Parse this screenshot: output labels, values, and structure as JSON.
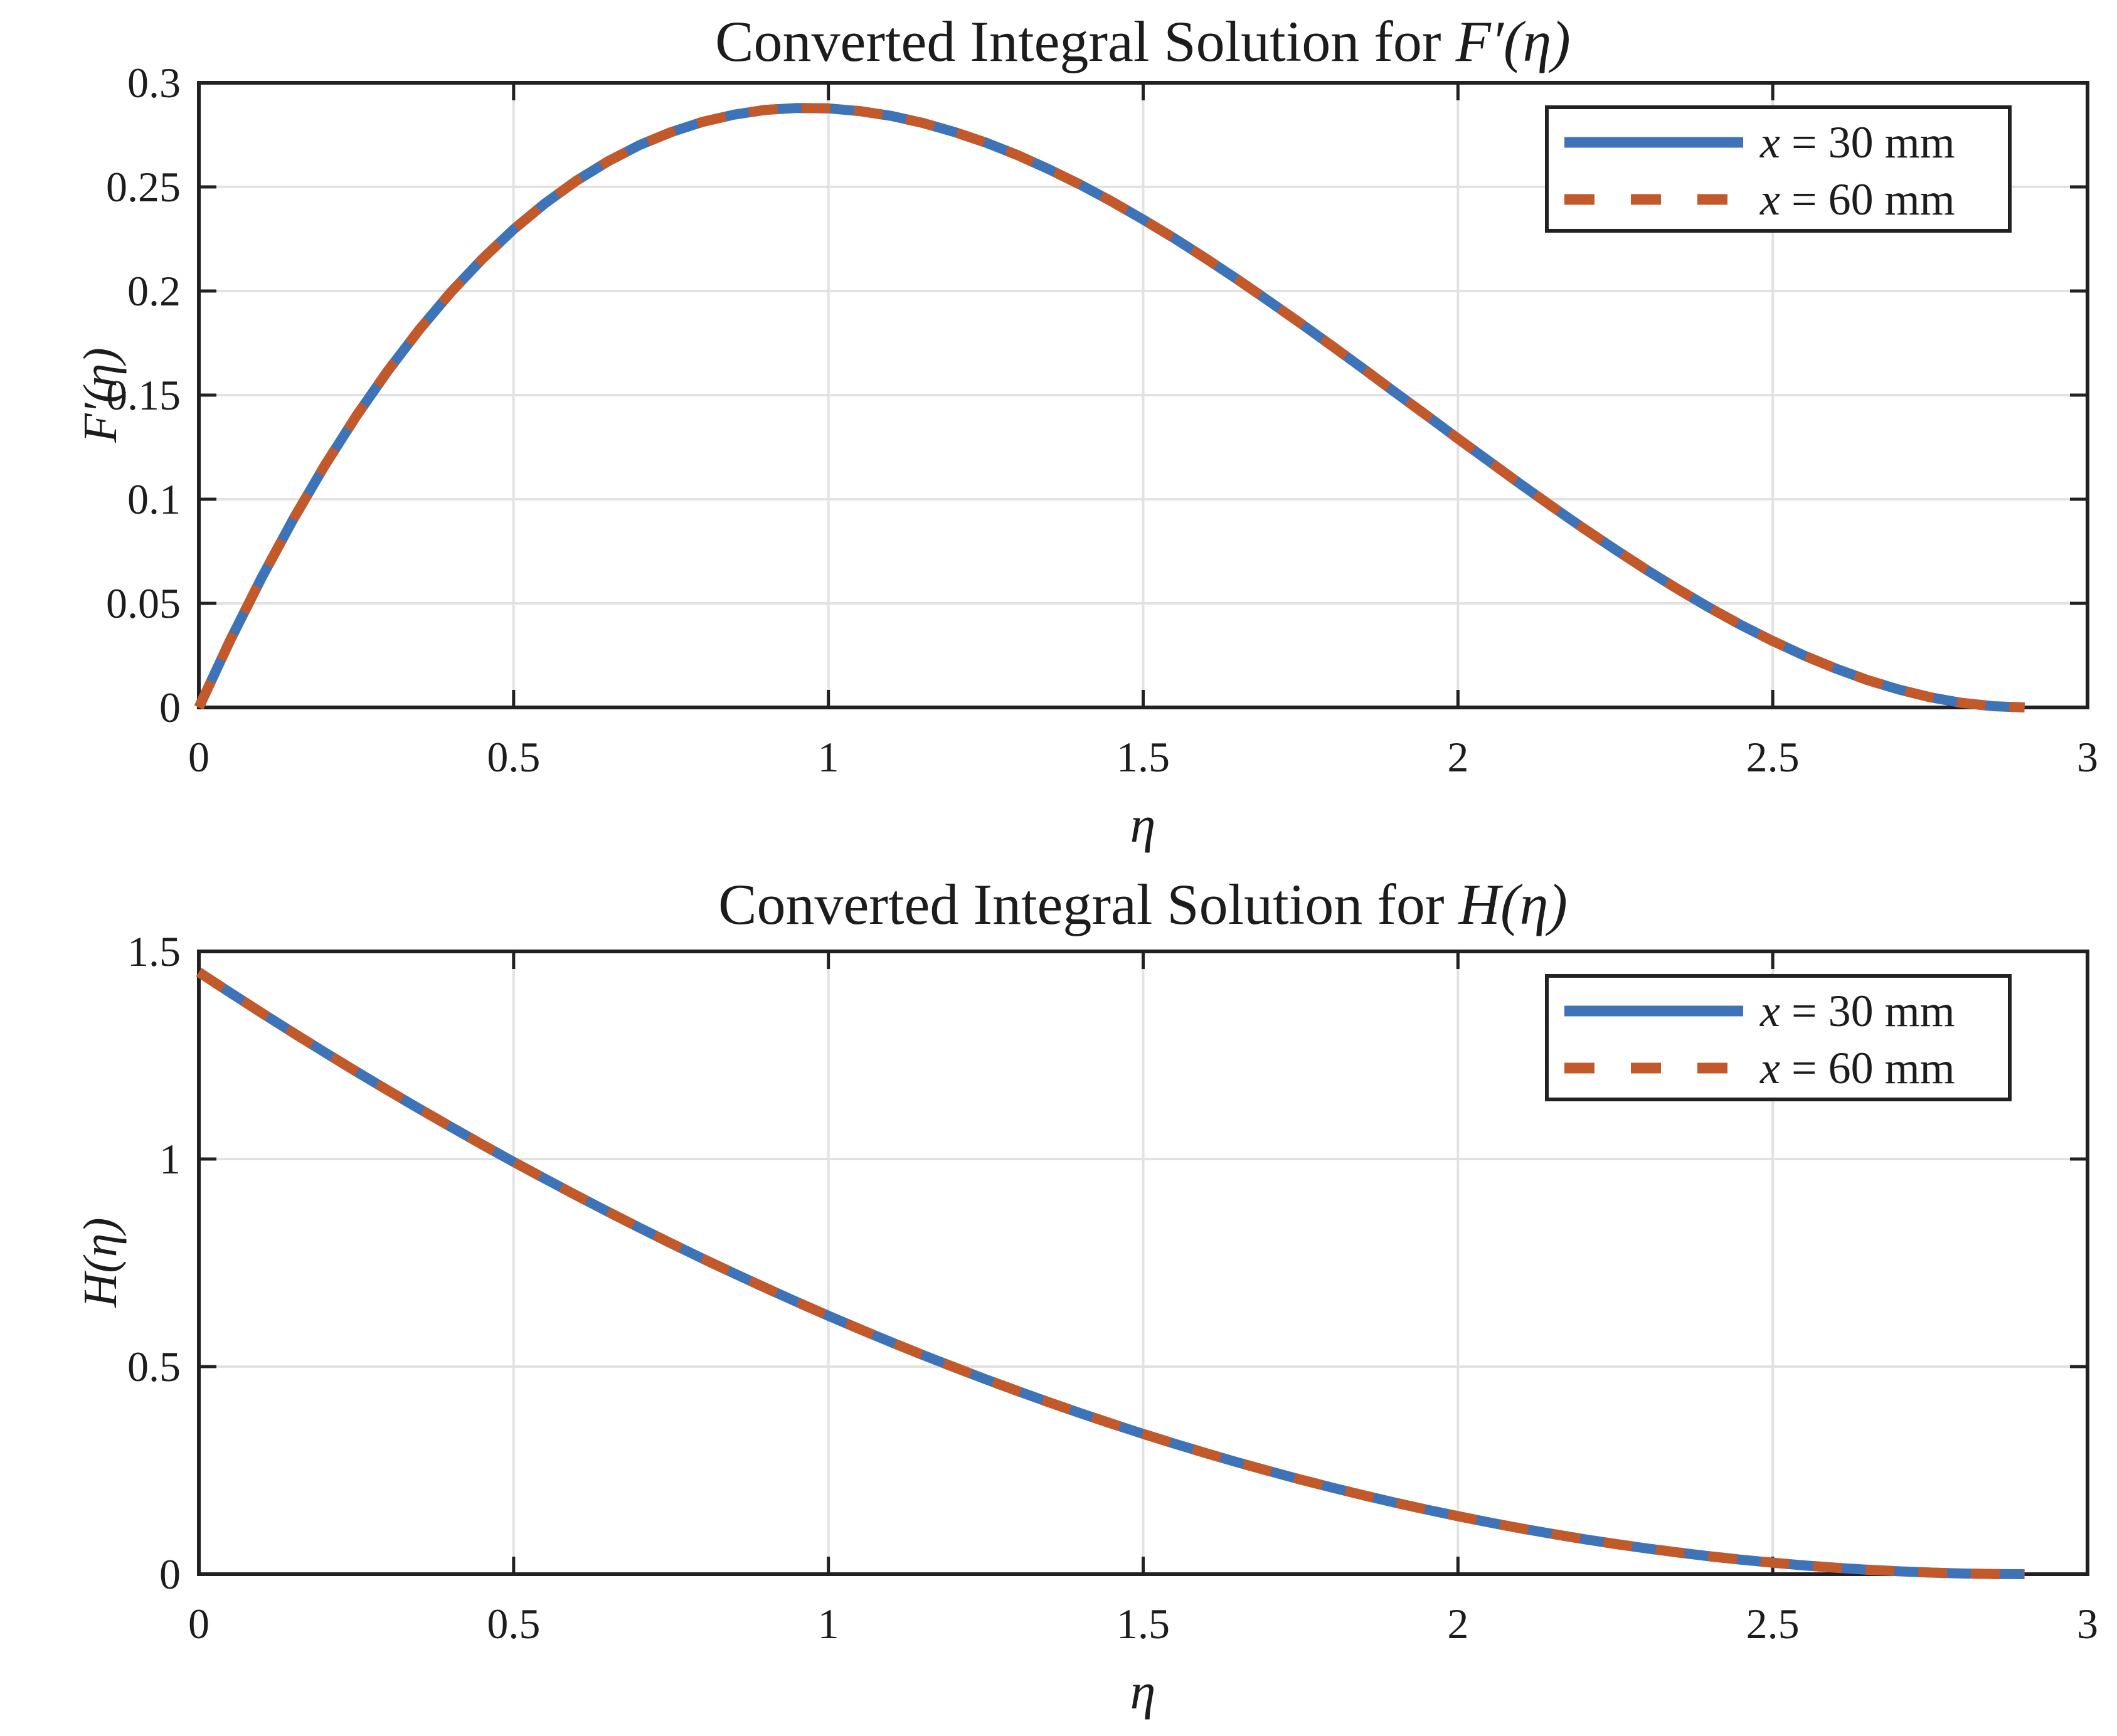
{
  "figure": {
    "background": "#FFFFFF",
    "text_color": "#1C1C1C",
    "grid_color": "#E2E2E2",
    "axis_color": "#212121",
    "accent_blue": "#3E73B7",
    "accent_orange": "#C2592B"
  },
  "chart_data": [
    {
      "type": "line",
      "title_text": "Converted Integral Solution for ",
      "title_math": "F′(η)",
      "xlabel": "η",
      "ylabel": "F′(η)",
      "xlim": [
        0,
        3
      ],
      "ylim": [
        0,
        0.3
      ],
      "xticks": [
        0,
        0.5,
        1,
        1.5,
        2,
        2.5,
        3
      ],
      "xtick_labels": [
        "0",
        "0.5",
        "1",
        "1.5",
        "2",
        "2.5",
        "3"
      ],
      "yticks": [
        0,
        0.05,
        0.1,
        0.15,
        0.2,
        0.25,
        0.3
      ],
      "ytick_labels": [
        "0",
        "0.05",
        "0.1",
        "0.15",
        "0.2",
        "0.25",
        "0.3"
      ],
      "grid": true,
      "legend_position": "top-right",
      "legend": {
        "entries": [
          {
            "label_var": "x",
            "label_rest": " = 30 mm"
          },
          {
            "label_var": "x",
            "label_rest": " = 60 mm"
          }
        ]
      },
      "x": [
        0,
        0.05,
        0.1,
        0.15,
        0.2,
        0.25,
        0.3,
        0.35,
        0.4,
        0.45,
        0.5,
        0.55,
        0.6,
        0.65,
        0.7,
        0.75,
        0.8,
        0.85,
        0.9,
        0.95,
        1,
        1.05,
        1.1,
        1.15,
        1.2,
        1.25,
        1.3,
        1.35,
        1.4,
        1.45,
        1.5,
        1.55,
        1.6,
        1.65,
        1.7,
        1.75,
        1.8,
        1.85,
        1.9,
        1.95,
        2,
        2.05,
        2.1,
        2.15,
        2.2,
        2.25,
        2.3,
        2.35,
        2.4,
        2.45,
        2.5,
        2.55,
        2.6,
        2.65,
        2.7,
        2.75,
        2.8,
        2.85,
        2.9
      ],
      "series": [
        {
          "name": "x = 30 mm",
          "color": "#3E73B7",
          "style": "solid",
          "values": [
            0.0,
            0.0324,
            0.0625,
            0.0904,
            0.1162,
            0.1399,
            0.1616,
            0.1814,
            0.1993,
            0.2153,
            0.2296,
            0.2421,
            0.253,
            0.2623,
            0.2701,
            0.2763,
            0.2812,
            0.2847,
            0.287,
            0.2879,
            0.2877,
            0.2864,
            0.2841,
            0.2807,
            0.2764,
            0.2713,
            0.2653,
            0.2585,
            0.2511,
            0.243,
            0.2343,
            0.2252,
            0.2155,
            0.2055,
            0.1951,
            0.1845,
            0.1736,
            0.1626,
            0.1514,
            0.1403,
            0.1291,
            0.1181,
            0.1071,
            0.0964,
            0.0859,
            0.0758,
            0.066,
            0.0567,
            0.0478,
            0.0395,
            0.0319,
            0.0249,
            0.0187,
            0.0132,
            0.0086,
            0.0049,
            0.0022,
            0.0006,
            0.0
          ]
        },
        {
          "name": "x = 60 mm",
          "color": "#C2592B",
          "style": "dashed",
          "values": [
            0.0,
            0.0324,
            0.0625,
            0.0904,
            0.1162,
            0.1399,
            0.1616,
            0.1814,
            0.1993,
            0.2153,
            0.2296,
            0.2421,
            0.253,
            0.2623,
            0.2701,
            0.2763,
            0.2812,
            0.2847,
            0.287,
            0.2879,
            0.2877,
            0.2864,
            0.2841,
            0.2807,
            0.2764,
            0.2713,
            0.2653,
            0.2585,
            0.2511,
            0.243,
            0.2343,
            0.2252,
            0.2155,
            0.2055,
            0.1951,
            0.1845,
            0.1736,
            0.1626,
            0.1514,
            0.1403,
            0.1291,
            0.1181,
            0.1071,
            0.0964,
            0.0859,
            0.0758,
            0.066,
            0.0567,
            0.0478,
            0.0395,
            0.0319,
            0.0249,
            0.0187,
            0.0132,
            0.0086,
            0.0049,
            0.0022,
            0.0006,
            0.0
          ]
        }
      ]
    },
    {
      "type": "line",
      "title_text": "Converted Integral Solution for ",
      "title_math": "H(η)",
      "xlabel": "η",
      "ylabel": "H(η)",
      "xlim": [
        0,
        3
      ],
      "ylim": [
        0,
        1.5
      ],
      "xticks": [
        0,
        0.5,
        1,
        1.5,
        2,
        2.5,
        3
      ],
      "xtick_labels": [
        "0",
        "0.5",
        "1",
        "1.5",
        "2",
        "2.5",
        "3"
      ],
      "yticks": [
        0,
        0.5,
        1,
        1.5
      ],
      "ytick_labels": [
        "0",
        "0.5",
        "1",
        "1.5"
      ],
      "grid": true,
      "legend_position": "top-right",
      "legend": {
        "entries": [
          {
            "label_var": "x",
            "label_rest": " = 30 mm"
          },
          {
            "label_var": "x",
            "label_rest": " = 60 mm"
          }
        ]
      },
      "x": [
        0,
        0.05,
        0.1,
        0.15,
        0.2,
        0.25,
        0.3,
        0.35,
        0.4,
        0.45,
        0.5,
        0.55,
        0.6,
        0.65,
        0.7,
        0.75,
        0.8,
        0.85,
        0.9,
        0.95,
        1,
        1.05,
        1.1,
        1.15,
        1.2,
        1.25,
        1.3,
        1.35,
        1.4,
        1.45,
        1.5,
        1.55,
        1.6,
        1.65,
        1.7,
        1.75,
        1.8,
        1.85,
        1.9,
        1.95,
        2,
        2.05,
        2.1,
        2.15,
        2.2,
        2.25,
        2.3,
        2.35,
        2.4,
        2.45,
        2.5,
        2.55,
        2.6,
        2.65,
        2.7,
        2.75,
        2.8,
        2.85,
        2.9
      ],
      "series": [
        {
          "name": "x = 30 mm",
          "color": "#3E73B7",
          "style": "solid",
          "values": [
            1.45,
            1.4004,
            1.3517,
            1.3039,
            1.2569,
            1.2108,
            1.1655,
            1.1211,
            1.0776,
            1.0349,
            0.9931,
            0.9522,
            0.9121,
            0.8728,
            0.8345,
            0.797,
            0.7603,
            0.7246,
            0.6897,
            0.6556,
            0.6224,
            0.5901,
            0.5586,
            0.528,
            0.4983,
            0.4694,
            0.4414,
            0.4142,
            0.3879,
            0.3625,
            0.3379,
            0.3142,
            0.2914,
            0.2694,
            0.2483,
            0.228,
            0.2086,
            0.1901,
            0.1724,
            0.1556,
            0.1397,
            0.1246,
            0.1103,
            0.097,
            0.0845,
            0.0728,
            0.0621,
            0.0522,
            0.0431,
            0.0349,
            0.0276,
            0.0211,
            0.0155,
            0.0108,
            0.0069,
            0.0039,
            0.0017,
            0.0004,
            0.0
          ]
        },
        {
          "name": "x = 60 mm",
          "color": "#C2592B",
          "style": "dashed",
          "values": [
            1.45,
            1.4004,
            1.3517,
            1.3039,
            1.2569,
            1.2108,
            1.1655,
            1.1211,
            1.0776,
            1.0349,
            0.9931,
            0.9522,
            0.9121,
            0.8728,
            0.8345,
            0.797,
            0.7603,
            0.7246,
            0.6897,
            0.6556,
            0.6224,
            0.5901,
            0.5586,
            0.528,
            0.4983,
            0.4694,
            0.4414,
            0.4142,
            0.3879,
            0.3625,
            0.3379,
            0.3142,
            0.2914,
            0.2694,
            0.2483,
            0.228,
            0.2086,
            0.1901,
            0.1724,
            0.1556,
            0.1397,
            0.1246,
            0.1103,
            0.097,
            0.0845,
            0.0728,
            0.0621,
            0.0522,
            0.0431,
            0.0349,
            0.0276,
            0.0211,
            0.0155,
            0.0108,
            0.0069,
            0.0039,
            0.0017,
            0.0004,
            0.0
          ]
        }
      ]
    }
  ]
}
